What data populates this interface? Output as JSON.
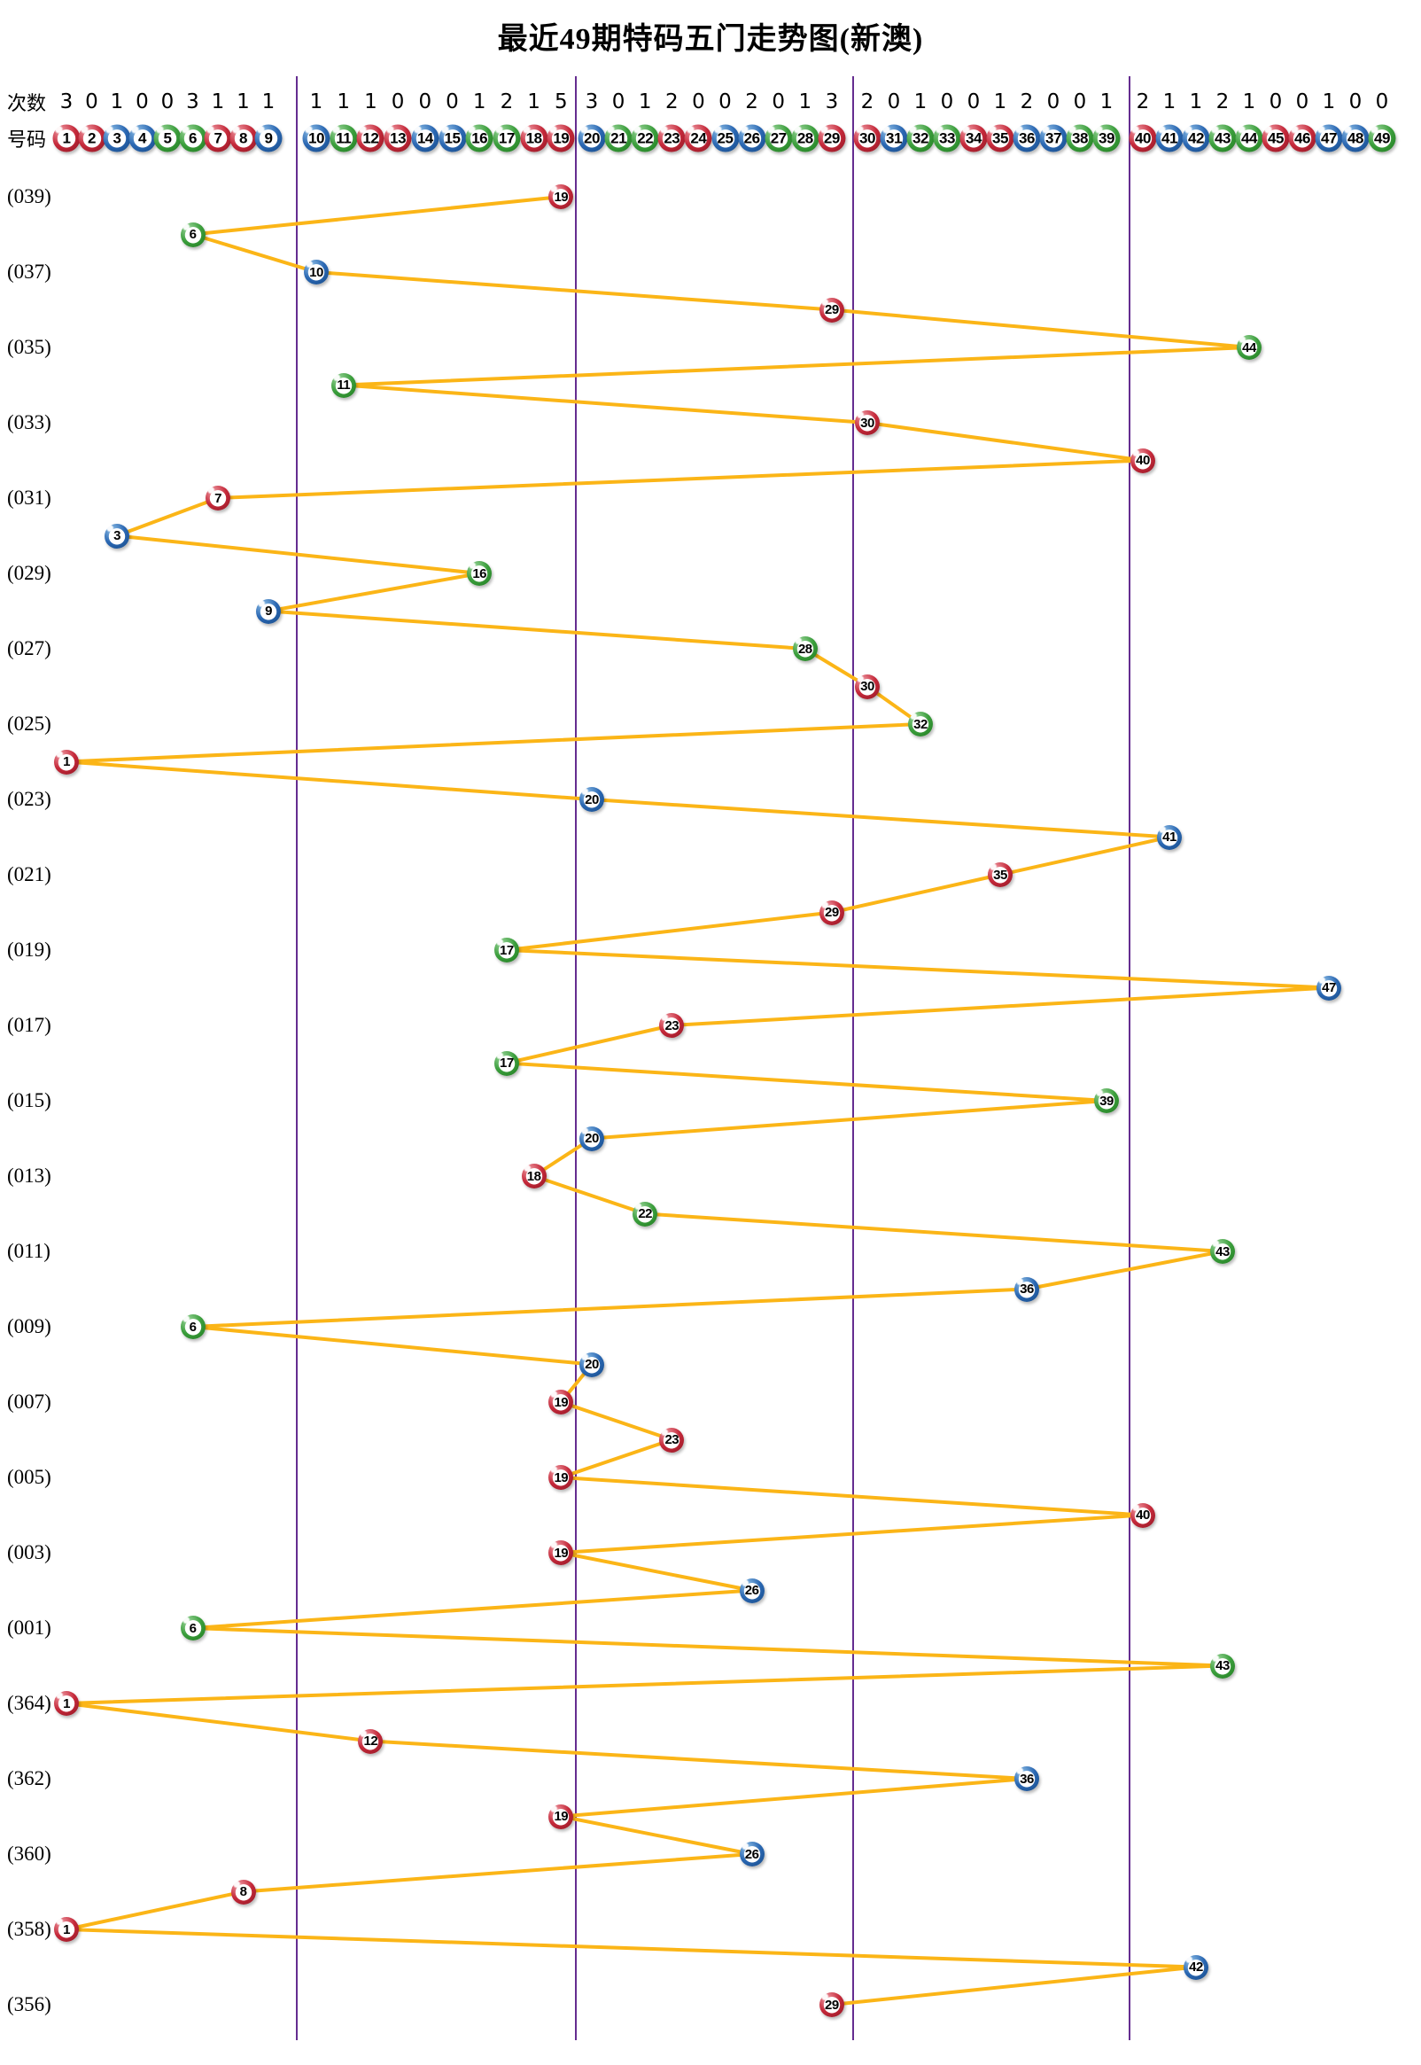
{
  "title": "最近49期特码五门走势图(新澳)",
  "header": {
    "counts_label": "次数",
    "numbers_label": "号码"
  },
  "colors": {
    "line": "#FBB517",
    "divider": "#652D90",
    "red_main": "#C5293A",
    "red_light": "#F09DA6",
    "red_dark": "#8E1623",
    "blue_main": "#2A67B2",
    "blue_light": "#8FC0E8",
    "blue_dark": "#174A86",
    "green_main": "#3B9E3C",
    "green_light": "#9CD69C",
    "green_dark": "#1F7A1F",
    "ball_number_text": "#000000"
  },
  "chart_data": {
    "type": "scatter",
    "title": "最近49期特码五门走势图(新澳)",
    "x_axis": "号码 1-49, 分五门(1-9, 10-19, 20-29, 30-39, 40-49)",
    "y_axis": "期号 (最近49期, 自上而下)",
    "counts_per_number": [
      3,
      0,
      1,
      0,
      0,
      3,
      1,
      1,
      1,
      1,
      1,
      1,
      0,
      0,
      0,
      1,
      2,
      1,
      5,
      3,
      0,
      1,
      2,
      0,
      0,
      2,
      0,
      1,
      3,
      2,
      0,
      1,
      0,
      0,
      1,
      2,
      0,
      0,
      1,
      2,
      1,
      1,
      2,
      1,
      0,
      0,
      1,
      0,
      0
    ],
    "number_color_groups": {
      "red": [
        1,
        2,
        7,
        8,
        12,
        13,
        18,
        19,
        23,
        24,
        29,
        30,
        34,
        35,
        40,
        45,
        46
      ],
      "blue": [
        3,
        4,
        9,
        10,
        14,
        15,
        20,
        25,
        26,
        31,
        36,
        37,
        41,
        42,
        47,
        48
      ],
      "green": [
        5,
        6,
        11,
        16,
        17,
        21,
        22,
        27,
        28,
        32,
        33,
        38,
        39,
        43,
        44,
        49
      ]
    },
    "group_ranges": [
      [
        1,
        9
      ],
      [
        10,
        19
      ],
      [
        20,
        29
      ],
      [
        30,
        39
      ],
      [
        40,
        49
      ]
    ],
    "legend_position": "none",
    "grid": "vertical group dividers only",
    "rows": [
      {
        "label": "(039)",
        "number": 19
      },
      {
        "label": "",
        "number": 6
      },
      {
        "label": "(037)",
        "number": 10
      },
      {
        "label": "",
        "number": 29
      },
      {
        "label": "(035)",
        "number": 44
      },
      {
        "label": "",
        "number": 11
      },
      {
        "label": "(033)",
        "number": 30
      },
      {
        "label": "",
        "number": 40
      },
      {
        "label": "(031)",
        "number": 7
      },
      {
        "label": "",
        "number": 3
      },
      {
        "label": "(029)",
        "number": 16
      },
      {
        "label": "",
        "number": 9
      },
      {
        "label": "(027)",
        "number": 28
      },
      {
        "label": "",
        "number": 30
      },
      {
        "label": "(025)",
        "number": 32
      },
      {
        "label": "",
        "number": 1
      },
      {
        "label": "(023)",
        "number": 20
      },
      {
        "label": "",
        "number": 41
      },
      {
        "label": "(021)",
        "number": 35
      },
      {
        "label": "",
        "number": 29
      },
      {
        "label": "(019)",
        "number": 17
      },
      {
        "label": "",
        "number": 47
      },
      {
        "label": "(017)",
        "number": 23
      },
      {
        "label": "",
        "number": 17
      },
      {
        "label": "(015)",
        "number": 39
      },
      {
        "label": "",
        "number": 20
      },
      {
        "label": "(013)",
        "number": 18
      },
      {
        "label": "",
        "number": 22
      },
      {
        "label": "(011)",
        "number": 43
      },
      {
        "label": "",
        "number": 36
      },
      {
        "label": "(009)",
        "number": 6
      },
      {
        "label": "",
        "number": 20
      },
      {
        "label": "(007)",
        "number": 19
      },
      {
        "label": "",
        "number": 23
      },
      {
        "label": "(005)",
        "number": 19
      },
      {
        "label": "",
        "number": 40
      },
      {
        "label": "(003)",
        "number": 19
      },
      {
        "label": "",
        "number": 26
      },
      {
        "label": "(001)",
        "number": 6
      },
      {
        "label": "",
        "number": 43
      },
      {
        "label": "(364)",
        "number": 1
      },
      {
        "label": "",
        "number": 12
      },
      {
        "label": "(362)",
        "number": 36
      },
      {
        "label": "",
        "number": 19
      },
      {
        "label": "(360)",
        "number": 26
      },
      {
        "label": "",
        "number": 8
      },
      {
        "label": "(358)",
        "number": 1
      },
      {
        "label": "",
        "number": 42
      },
      {
        "label": "(356)",
        "number": 29
      }
    ]
  }
}
